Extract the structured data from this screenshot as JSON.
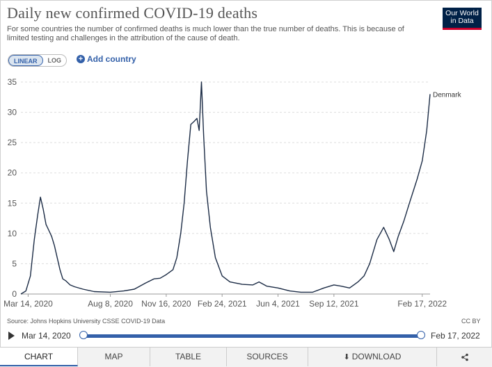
{
  "header": {
    "title": "Daily new confirmed COVID-19 deaths",
    "subtitle": "For some countries the number of confirmed deaths is much lower than the true number of deaths. This is because of limited testing and challenges in the attribution of the cause of death.",
    "logo_line1": "Our World",
    "logo_line2": "in Data"
  },
  "controls": {
    "linear_label": "LINEAR",
    "log_label": "LOG",
    "add_country_label": "Add country"
  },
  "chart_data": {
    "type": "line",
    "title": "Daily new confirmed COVID-19 deaths",
    "xlabel": "",
    "ylabel": "",
    "ylim": [
      0,
      35
    ],
    "yticks": [
      0,
      5,
      10,
      15,
      20,
      25,
      30,
      35
    ],
    "xticks": [
      "Mar 14, 2020",
      "Aug 8, 2020",
      "Nov 16, 2020",
      "Feb 24, 2021",
      "Jun 4, 2021",
      "Sep 12, 2021",
      "Feb 17, 2022"
    ],
    "grid": true,
    "series": [
      {
        "name": "Denmark",
        "color": "#1a2a44",
        "points": [
          [
            "2020-03-01",
            0
          ],
          [
            "2020-03-10",
            0.5
          ],
          [
            "2020-03-18",
            3
          ],
          [
            "2020-03-25",
            9
          ],
          [
            "2020-03-31",
            13
          ],
          [
            "2020-04-05",
            16
          ],
          [
            "2020-04-10",
            14
          ],
          [
            "2020-04-15",
            11.5
          ],
          [
            "2020-04-20",
            10.5
          ],
          [
            "2020-04-25",
            9.5
          ],
          [
            "2020-04-30",
            8
          ],
          [
            "2020-05-05",
            6
          ],
          [
            "2020-05-10",
            4
          ],
          [
            "2020-05-15",
            2.5
          ],
          [
            "2020-05-20",
            2.2
          ],
          [
            "2020-05-28",
            1.5
          ],
          [
            "2020-06-05",
            1.2
          ],
          [
            "2020-06-20",
            0.8
          ],
          [
            "2020-07-10",
            0.4
          ],
          [
            "2020-08-08",
            0.3
          ],
          [
            "2020-09-01",
            0.5
          ],
          [
            "2020-09-20",
            0.8
          ],
          [
            "2020-10-10",
            1.8
          ],
          [
            "2020-10-25",
            2.5
          ],
          [
            "2020-11-05",
            2.6
          ],
          [
            "2020-11-16",
            3.2
          ],
          [
            "2020-11-28",
            4
          ],
          [
            "2020-12-05",
            6
          ],
          [
            "2020-12-12",
            10
          ],
          [
            "2020-12-18",
            15
          ],
          [
            "2020-12-24",
            22
          ],
          [
            "2020-12-30",
            28
          ],
          [
            "2021-01-05",
            28.5
          ],
          [
            "2021-01-10",
            29
          ],
          [
            "2021-01-14",
            27
          ],
          [
            "2021-01-18",
            35
          ],
          [
            "2021-01-22",
            26
          ],
          [
            "2021-01-27",
            17
          ],
          [
            "2021-02-03",
            11
          ],
          [
            "2021-02-12",
            6
          ],
          [
            "2021-02-24",
            3
          ],
          [
            "2021-03-10",
            2
          ],
          [
            "2021-04-01",
            1.6
          ],
          [
            "2021-04-20",
            1.5
          ],
          [
            "2021-05-01",
            2
          ],
          [
            "2021-05-15",
            1.3
          ],
          [
            "2021-06-04",
            1
          ],
          [
            "2021-06-25",
            0.5
          ],
          [
            "2021-07-15",
            0.3
          ],
          [
            "2021-08-05",
            0.3
          ],
          [
            "2021-08-25",
            1
          ],
          [
            "2021-09-12",
            1.5
          ],
          [
            "2021-09-25",
            1.3
          ],
          [
            "2021-10-10",
            1
          ],
          [
            "2021-10-25",
            2
          ],
          [
            "2021-11-05",
            3
          ],
          [
            "2021-11-15",
            5
          ],
          [
            "2021-11-28",
            9
          ],
          [
            "2021-12-10",
            11
          ],
          [
            "2021-12-20",
            9
          ],
          [
            "2021-12-28",
            7
          ],
          [
            "2022-01-05",
            9.5
          ],
          [
            "2022-01-15",
            12
          ],
          [
            "2022-01-25",
            15
          ],
          [
            "2022-02-01",
            17
          ],
          [
            "2022-02-08",
            19
          ],
          [
            "2022-02-17",
            22
          ],
          [
            "2022-02-25",
            27
          ],
          [
            "2022-03-03",
            33
          ]
        ]
      }
    ],
    "x_start": "2020-03-01",
    "x_end": "2022-03-03"
  },
  "footer": {
    "source": "Source: Johns Hopkins University CSSE COVID-19 Data",
    "license": "CC BY"
  },
  "timeline": {
    "start_label": "Mar 14, 2020",
    "end_label": "Feb 17, 2022",
    "start_position": 0,
    "end_position": 1
  },
  "tabs": {
    "chart": "CHART",
    "map": "MAP",
    "table": "TABLE",
    "sources": "SOURCES",
    "download": "DOWNLOAD"
  }
}
